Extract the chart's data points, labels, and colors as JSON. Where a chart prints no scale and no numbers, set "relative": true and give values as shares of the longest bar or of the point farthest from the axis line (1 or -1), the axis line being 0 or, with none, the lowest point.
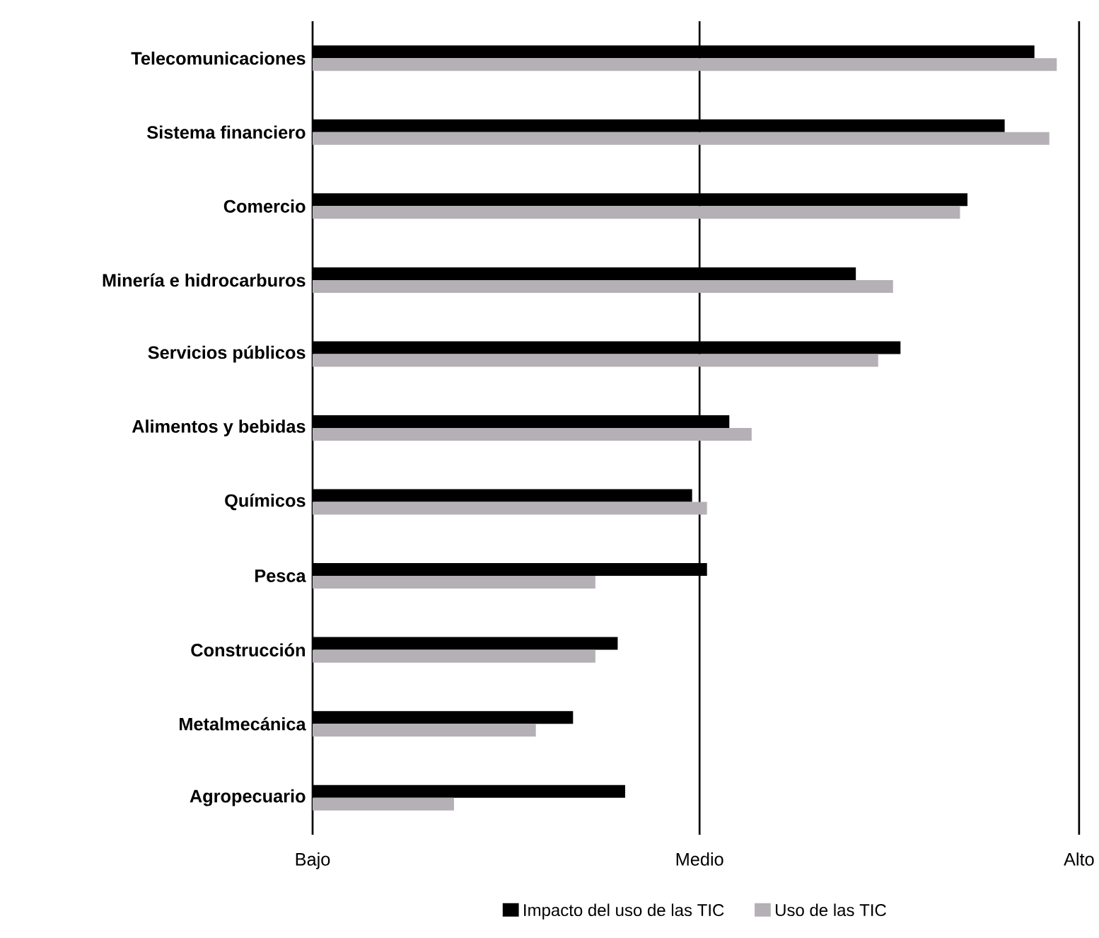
{
  "chart_data": {
    "type": "bar",
    "orientation": "horizontal",
    "relative": true,
    "categories": [
      "Telecomunicaciones",
      "Sistema financiero",
      "Comercio",
      "Minería e hidrocarburos",
      "Servicios públicos",
      "Alimentos y bebidas",
      "Químicos",
      "Pesca",
      "Construcción",
      "Metalmecánica",
      "Agropecuario"
    ],
    "series": [
      {
        "name": "Impacto del uso de las TIC",
        "color": "#000000",
        "values": [
          0.97,
          0.93,
          0.88,
          0.73,
          0.79,
          0.56,
          0.51,
          0.53,
          0.41,
          0.35,
          0.42
        ]
      },
      {
        "name": "Uso de las TIC",
        "color": "#b5b0b5",
        "values": [
          1,
          0.99,
          0.87,
          0.78,
          0.76,
          0.59,
          0.53,
          0.38,
          0.38,
          0.3,
          0.19
        ]
      }
    ],
    "annotations": [
      "Bajo"
    ],
    "ref_lines": [
      {
        "axis": "x",
        "value": 0.52,
        "label": "Medio"
      },
      {
        "axis": "x",
        "value": 1.03,
        "label": "Alto"
      }
    ],
    "legend": "bottom"
  }
}
